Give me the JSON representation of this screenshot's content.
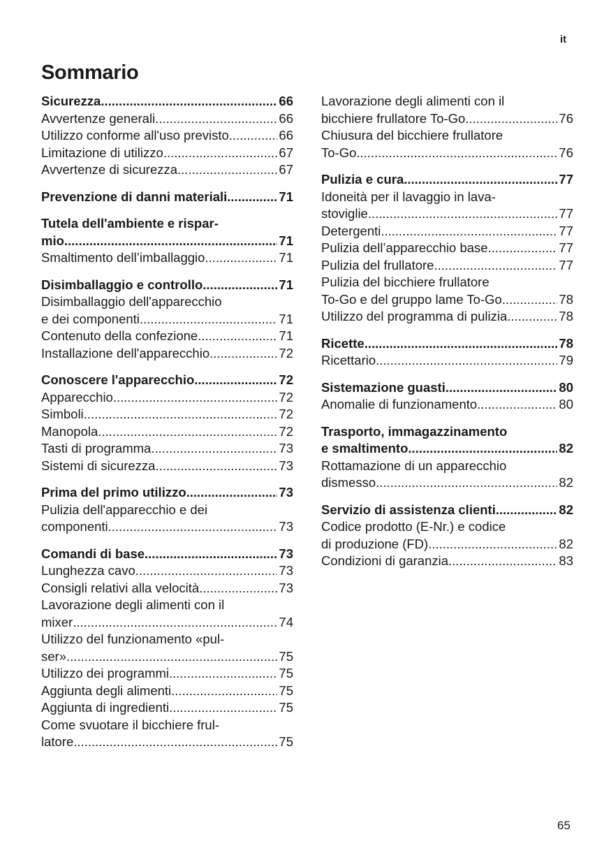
{
  "lang": "it",
  "title": "Sommario",
  "page_number": "65",
  "left_column": [
    {
      "entries": [
        {
          "lines": [
            "Sicurezza"
          ],
          "page": "66",
          "bold": true
        },
        {
          "lines": [
            "Avvertenze generali"
          ],
          "page": "66"
        },
        {
          "lines": [
            "Utilizzo conforme all'uso previsto"
          ],
          "page": "66"
        },
        {
          "lines": [
            "Limitazione di utilizzo"
          ],
          "page": "67"
        },
        {
          "lines": [
            "Avvertenze di sicurezza"
          ],
          "page": "67"
        }
      ]
    },
    {
      "entries": [
        {
          "lines": [
            "Prevenzione di danni materiali"
          ],
          "page": "71",
          "bold": true
        }
      ]
    },
    {
      "entries": [
        {
          "lines": [
            "Tutela dell'ambiente e rispar-",
            "mio"
          ],
          "page": "71",
          "bold": true
        },
        {
          "lines": [
            "Smaltimento dell’imballaggio"
          ],
          "page": "71"
        }
      ]
    },
    {
      "entries": [
        {
          "lines": [
            "Disimballaggio e controllo"
          ],
          "page": "71",
          "bold": true
        },
        {
          "lines": [
            "Disimballaggio dell'apparecchio",
            "e dei componenti"
          ],
          "page": "71"
        },
        {
          "lines": [
            "Contenuto della confezione"
          ],
          "page": "71"
        },
        {
          "lines": [
            "Installazione dell'apparecchio"
          ],
          "page": "72"
        }
      ]
    },
    {
      "entries": [
        {
          "lines": [
            "Conoscere l'apparecchio"
          ],
          "page": "72",
          "bold": true
        },
        {
          "lines": [
            "Apparecchio"
          ],
          "page": "72"
        },
        {
          "lines": [
            "Simboli"
          ],
          "page": "72"
        },
        {
          "lines": [
            "Manopola"
          ],
          "page": "72"
        },
        {
          "lines": [
            "Tasti di programma"
          ],
          "page": "73"
        },
        {
          "lines": [
            "Sistemi di sicurezza"
          ],
          "page": "73"
        }
      ]
    },
    {
      "entries": [
        {
          "lines": [
            "Prima del primo utilizzo"
          ],
          "page": "73",
          "bold": true
        },
        {
          "lines": [
            "Pulizia dell'apparecchio e dei",
            "componenti"
          ],
          "page": "73"
        }
      ]
    },
    {
      "entries": [
        {
          "lines": [
            "Comandi di base"
          ],
          "page": "73",
          "bold": true
        },
        {
          "lines": [
            "Lunghezza cavo"
          ],
          "page": "73"
        },
        {
          "lines": [
            "Consigli relativi alla velocità"
          ],
          "page": "73"
        },
        {
          "lines": [
            "Lavorazione degli alimenti con il",
            "mixer"
          ],
          "page": "74"
        },
        {
          "lines": [
            "Utilizzo del funzionamento «pul-",
            "ser»"
          ],
          "page": "75"
        },
        {
          "lines": [
            "Utilizzo dei programmi"
          ],
          "page": "75"
        },
        {
          "lines": [
            "Aggiunta degli alimenti"
          ],
          "page": "75"
        },
        {
          "lines": [
            "Aggiunta di ingredienti"
          ],
          "page": "75"
        },
        {
          "lines": [
            "Come svuotare il bicchiere frul-",
            "latore"
          ],
          "page": "75"
        }
      ]
    }
  ],
  "right_column": [
    {
      "entries": [
        {
          "lines": [
            "Lavorazione degli alimenti con il",
            "bicchiere frullatore To-Go"
          ],
          "page": "76"
        },
        {
          "lines": [
            "Chiusura del bicchiere frullatore",
            "To-Go"
          ],
          "page": "76"
        }
      ]
    },
    {
      "entries": [
        {
          "lines": [
            "Pulizia e cura"
          ],
          "page": "77",
          "bold": true
        },
        {
          "lines": [
            "Idoneità per il lavaggio in lava-",
            "stoviglie"
          ],
          "page": "77"
        },
        {
          "lines": [
            "Detergenti"
          ],
          "page": "77"
        },
        {
          "lines": [
            "Pulizia dell’apparecchio base"
          ],
          "page": "77"
        },
        {
          "lines": [
            "Pulizia del frullatore"
          ],
          "page": "77"
        },
        {
          "lines": [
            "Pulizia del bicchiere frullatore",
            "To-Go e del gruppo lame To-Go"
          ],
          "page": "78"
        },
        {
          "lines": [
            "Utilizzo del programma di pulizia"
          ],
          "page": "78"
        }
      ]
    },
    {
      "entries": [
        {
          "lines": [
            "Ricette"
          ],
          "page": "78",
          "bold": true
        },
        {
          "lines": [
            "Ricettario"
          ],
          "page": "79"
        }
      ]
    },
    {
      "entries": [
        {
          "lines": [
            "Sistemazione guasti"
          ],
          "page": "80",
          "bold": true
        },
        {
          "lines": [
            "Anomalie di funzionamento"
          ],
          "page": "80"
        }
      ]
    },
    {
      "entries": [
        {
          "lines": [
            "Trasporto, immagazzinamento",
            "e smaltimento"
          ],
          "page": "82",
          "bold": true
        },
        {
          "lines": [
            "Rottamazione di un apparecchio",
            "dismesso"
          ],
          "page": "82"
        }
      ]
    },
    {
      "entries": [
        {
          "lines": [
            "Servizio di assistenza clienti"
          ],
          "page": "82",
          "bold": true
        },
        {
          "lines": [
            "Codice prodotto (E-Nr.) e codice",
            "di produzione (FD)"
          ],
          "page": "82"
        },
        {
          "lines": [
            "Condizioni di garanzia"
          ],
          "page": "83"
        }
      ]
    }
  ]
}
